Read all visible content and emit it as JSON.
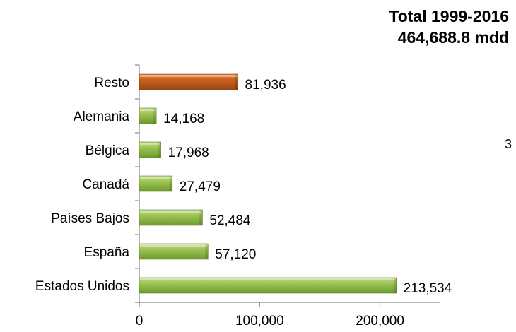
{
  "title_line1": "Total 1999-2016",
  "title_line2": "464,688.8 mdd",
  "side_note": "3",
  "chart_data": {
    "type": "bar",
    "orientation": "horizontal",
    "categories": [
      "Estados Unidos",
      "España",
      "Países Bajos",
      "Canadá",
      "Bélgica",
      "Alemania",
      "Resto"
    ],
    "values": [
      213534,
      57120,
      52484,
      27479,
      17968,
      14168,
      81936
    ],
    "value_labels": [
      "213,534",
      "57,120",
      "52,484",
      "27,479",
      "17,968",
      "14,168",
      "81,936"
    ],
    "xlim": [
      0,
      250000
    ],
    "xticks": [
      0,
      100000,
      200000
    ],
    "xtick_labels": [
      "0",
      "100,000",
      "200,000"
    ],
    "colors": {
      "default": "#8fb64a",
      "highlight": "#c0561a",
      "highlight_category": "Resto"
    },
    "grid": false,
    "legend": "none"
  }
}
